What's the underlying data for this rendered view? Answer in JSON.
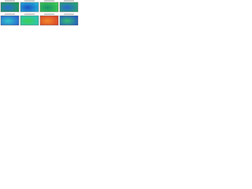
{
  "panels": [
    {
      "colors": [
        "#1f9e4a",
        "#2b6fd6"
      ]
    },
    {
      "colors": [
        "#23b8d8",
        "#1d4fc4"
      ]
    },
    {
      "colors": [
        "#3ccf4e",
        "#1a8f6a"
      ]
    },
    {
      "colors": [
        "#27a86a",
        "#2a66d0"
      ]
    },
    {
      "colors": [
        "#2a62d2",
        "#2fc6c9"
      ]
    },
    {
      "colors": [
        "#2bc4c0",
        "#3bcf55"
      ]
    },
    {
      "colors": [
        "#d8402a",
        "#f08a2a"
      ]
    },
    {
      "colors": [
        "#2456c8",
        "#36c070"
      ]
    }
  ]
}
